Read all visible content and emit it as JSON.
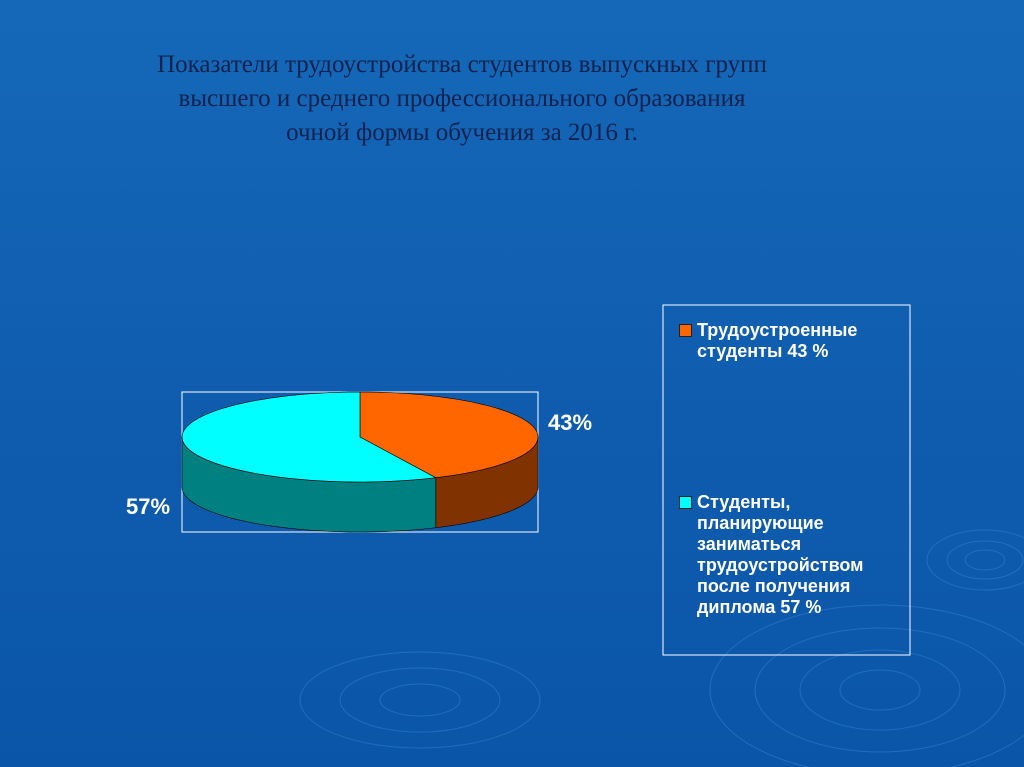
{
  "chart_data": {
    "type": "pie3d",
    "title": [
      "Показатели трудоустройства студентов выпускных групп",
      "высшего и среднего профессионального образования",
      "очной формы обучения за 2016 г."
    ],
    "categories": [
      "Трудоустроенные студенты 43 %",
      "Студенты, планирующие заниматься трудоустройством после получения диплома 57 %"
    ],
    "values": [
      43,
      57
    ],
    "value_labels": [
      "43%",
      "57%"
    ],
    "colors": [
      "#ff6600",
      "#00ffff"
    ]
  }
}
